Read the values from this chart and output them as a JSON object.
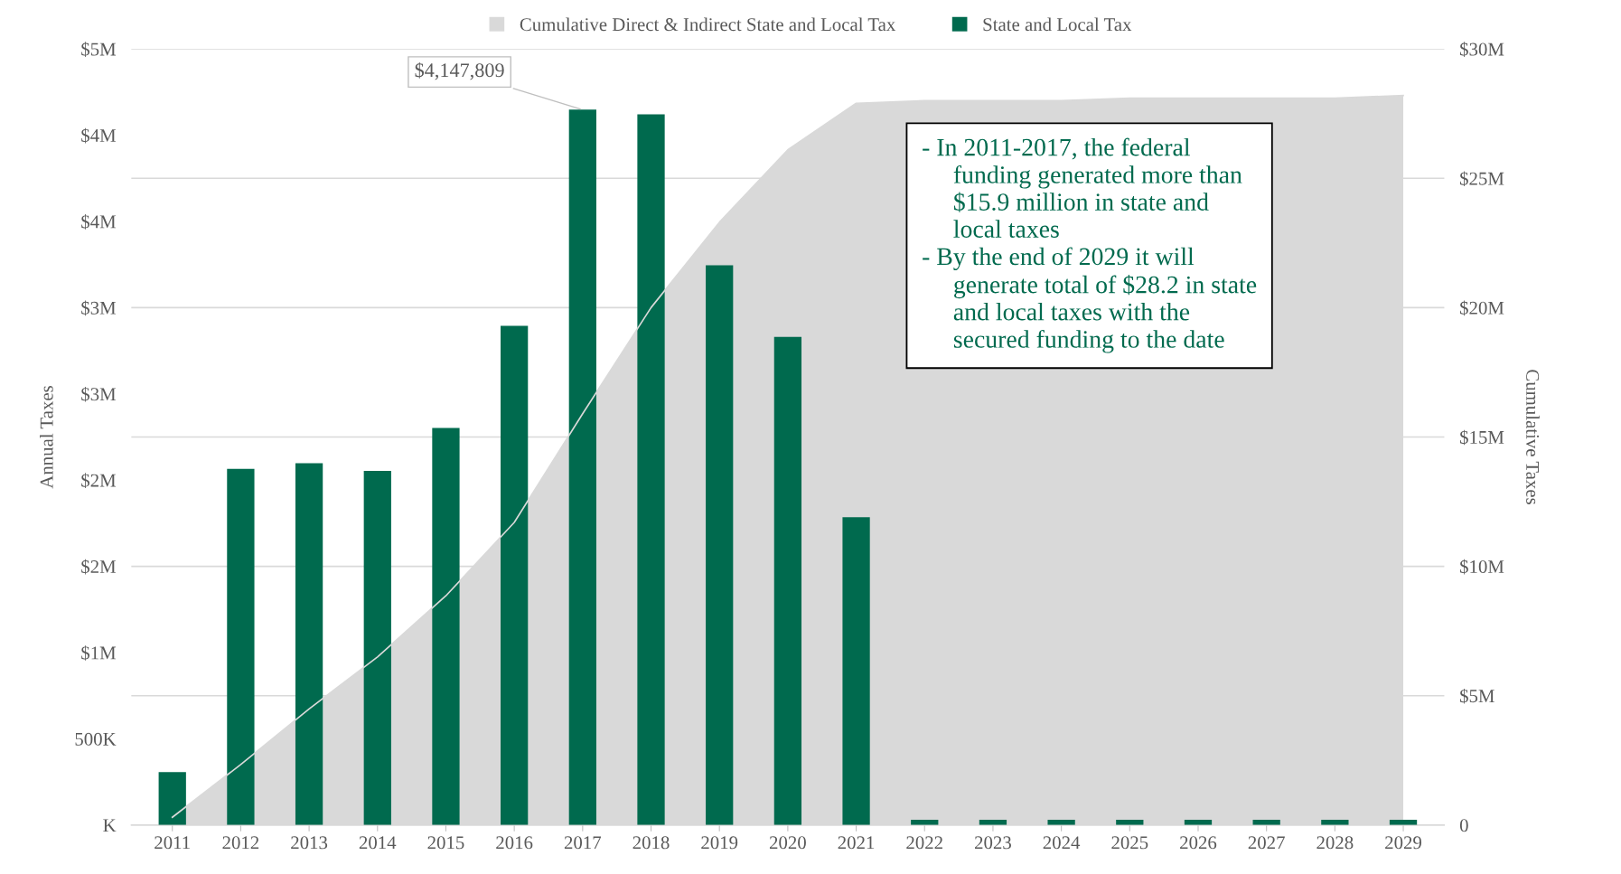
{
  "chart_data": {
    "type": "bar",
    "categories": [
      "2011",
      "2012",
      "2013",
      "2014",
      "2015",
      "2016",
      "2017",
      "2018",
      "2019",
      "2020",
      "2021",
      "2022",
      "2023",
      "2024",
      "2025",
      "2026",
      "2027",
      "2028",
      "2029"
    ],
    "series": [
      {
        "name": "Cumulative Direct & Indirect State and Local Tax",
        "type": "area",
        "axis": "y2",
        "color": "#d9d9d9",
        "values": [
          300000,
          2340000,
          4490000,
          6500000,
          8860000,
          11700000,
          15900000,
          20000000,
          23300000,
          26100000,
          27900000,
          28000000,
          28000000,
          28000000,
          28100000,
          28100000,
          28100000,
          28100000,
          28200000
        ]
      },
      {
        "name": "State and Local Tax",
        "color": "#006a4e",
        "values": [
          307000,
          2065000,
          2098000,
          2053000,
          2302000,
          2894000,
          4147809,
          4121000,
          3246000,
          2831000,
          1785000,
          30000,
          30000,
          30000,
          30000,
          30000,
          30000,
          30000,
          30000
        ]
      }
    ],
    "ylabel": "Annual Taxes",
    "y2label": "Cumulative Taxes",
    "ylim": [
      0,
      4500000
    ],
    "yticks": [
      {
        "value": 0,
        "label": "K"
      },
      {
        "value": 500000,
        "label": "500K"
      },
      {
        "value": 1000000,
        "label": "$1M"
      },
      {
        "value": 1500000,
        "label": "$2M"
      },
      {
        "value": 2000000,
        "label": "$2M"
      },
      {
        "value": 2500000,
        "label": "$3M"
      },
      {
        "value": 3000000,
        "label": "$3M"
      },
      {
        "value": 3500000,
        "label": "$4M"
      },
      {
        "value": 4000000,
        "label": "$4M"
      },
      {
        "value": 4500000,
        "label": "$5M"
      }
    ],
    "y2lim": [
      0,
      30000000
    ],
    "y2ticks": [
      {
        "value": 0,
        "label": "0"
      },
      {
        "value": 5000000,
        "label": "$5M"
      },
      {
        "value": 10000000,
        "label": "$10M"
      },
      {
        "value": 15000000,
        "label": "$15M"
      },
      {
        "value": 20000000,
        "label": "$20M"
      },
      {
        "value": 25000000,
        "label": "$25M"
      },
      {
        "value": 30000000,
        "label": "$30M"
      }
    ],
    "grid": "y",
    "legend": "top",
    "annotations": [
      {
        "text": "$4,147,809",
        "x": "2017",
        "y": 4147809
      },
      "- In 2011-2017, the federal\nfunding generated more than\n$15.9 million in state and\nlocal taxes",
      "- By the end of 2029 it will\ngenerate total of $28.2 in state\nand local taxes with the\nsecured funding to the date"
    ]
  }
}
